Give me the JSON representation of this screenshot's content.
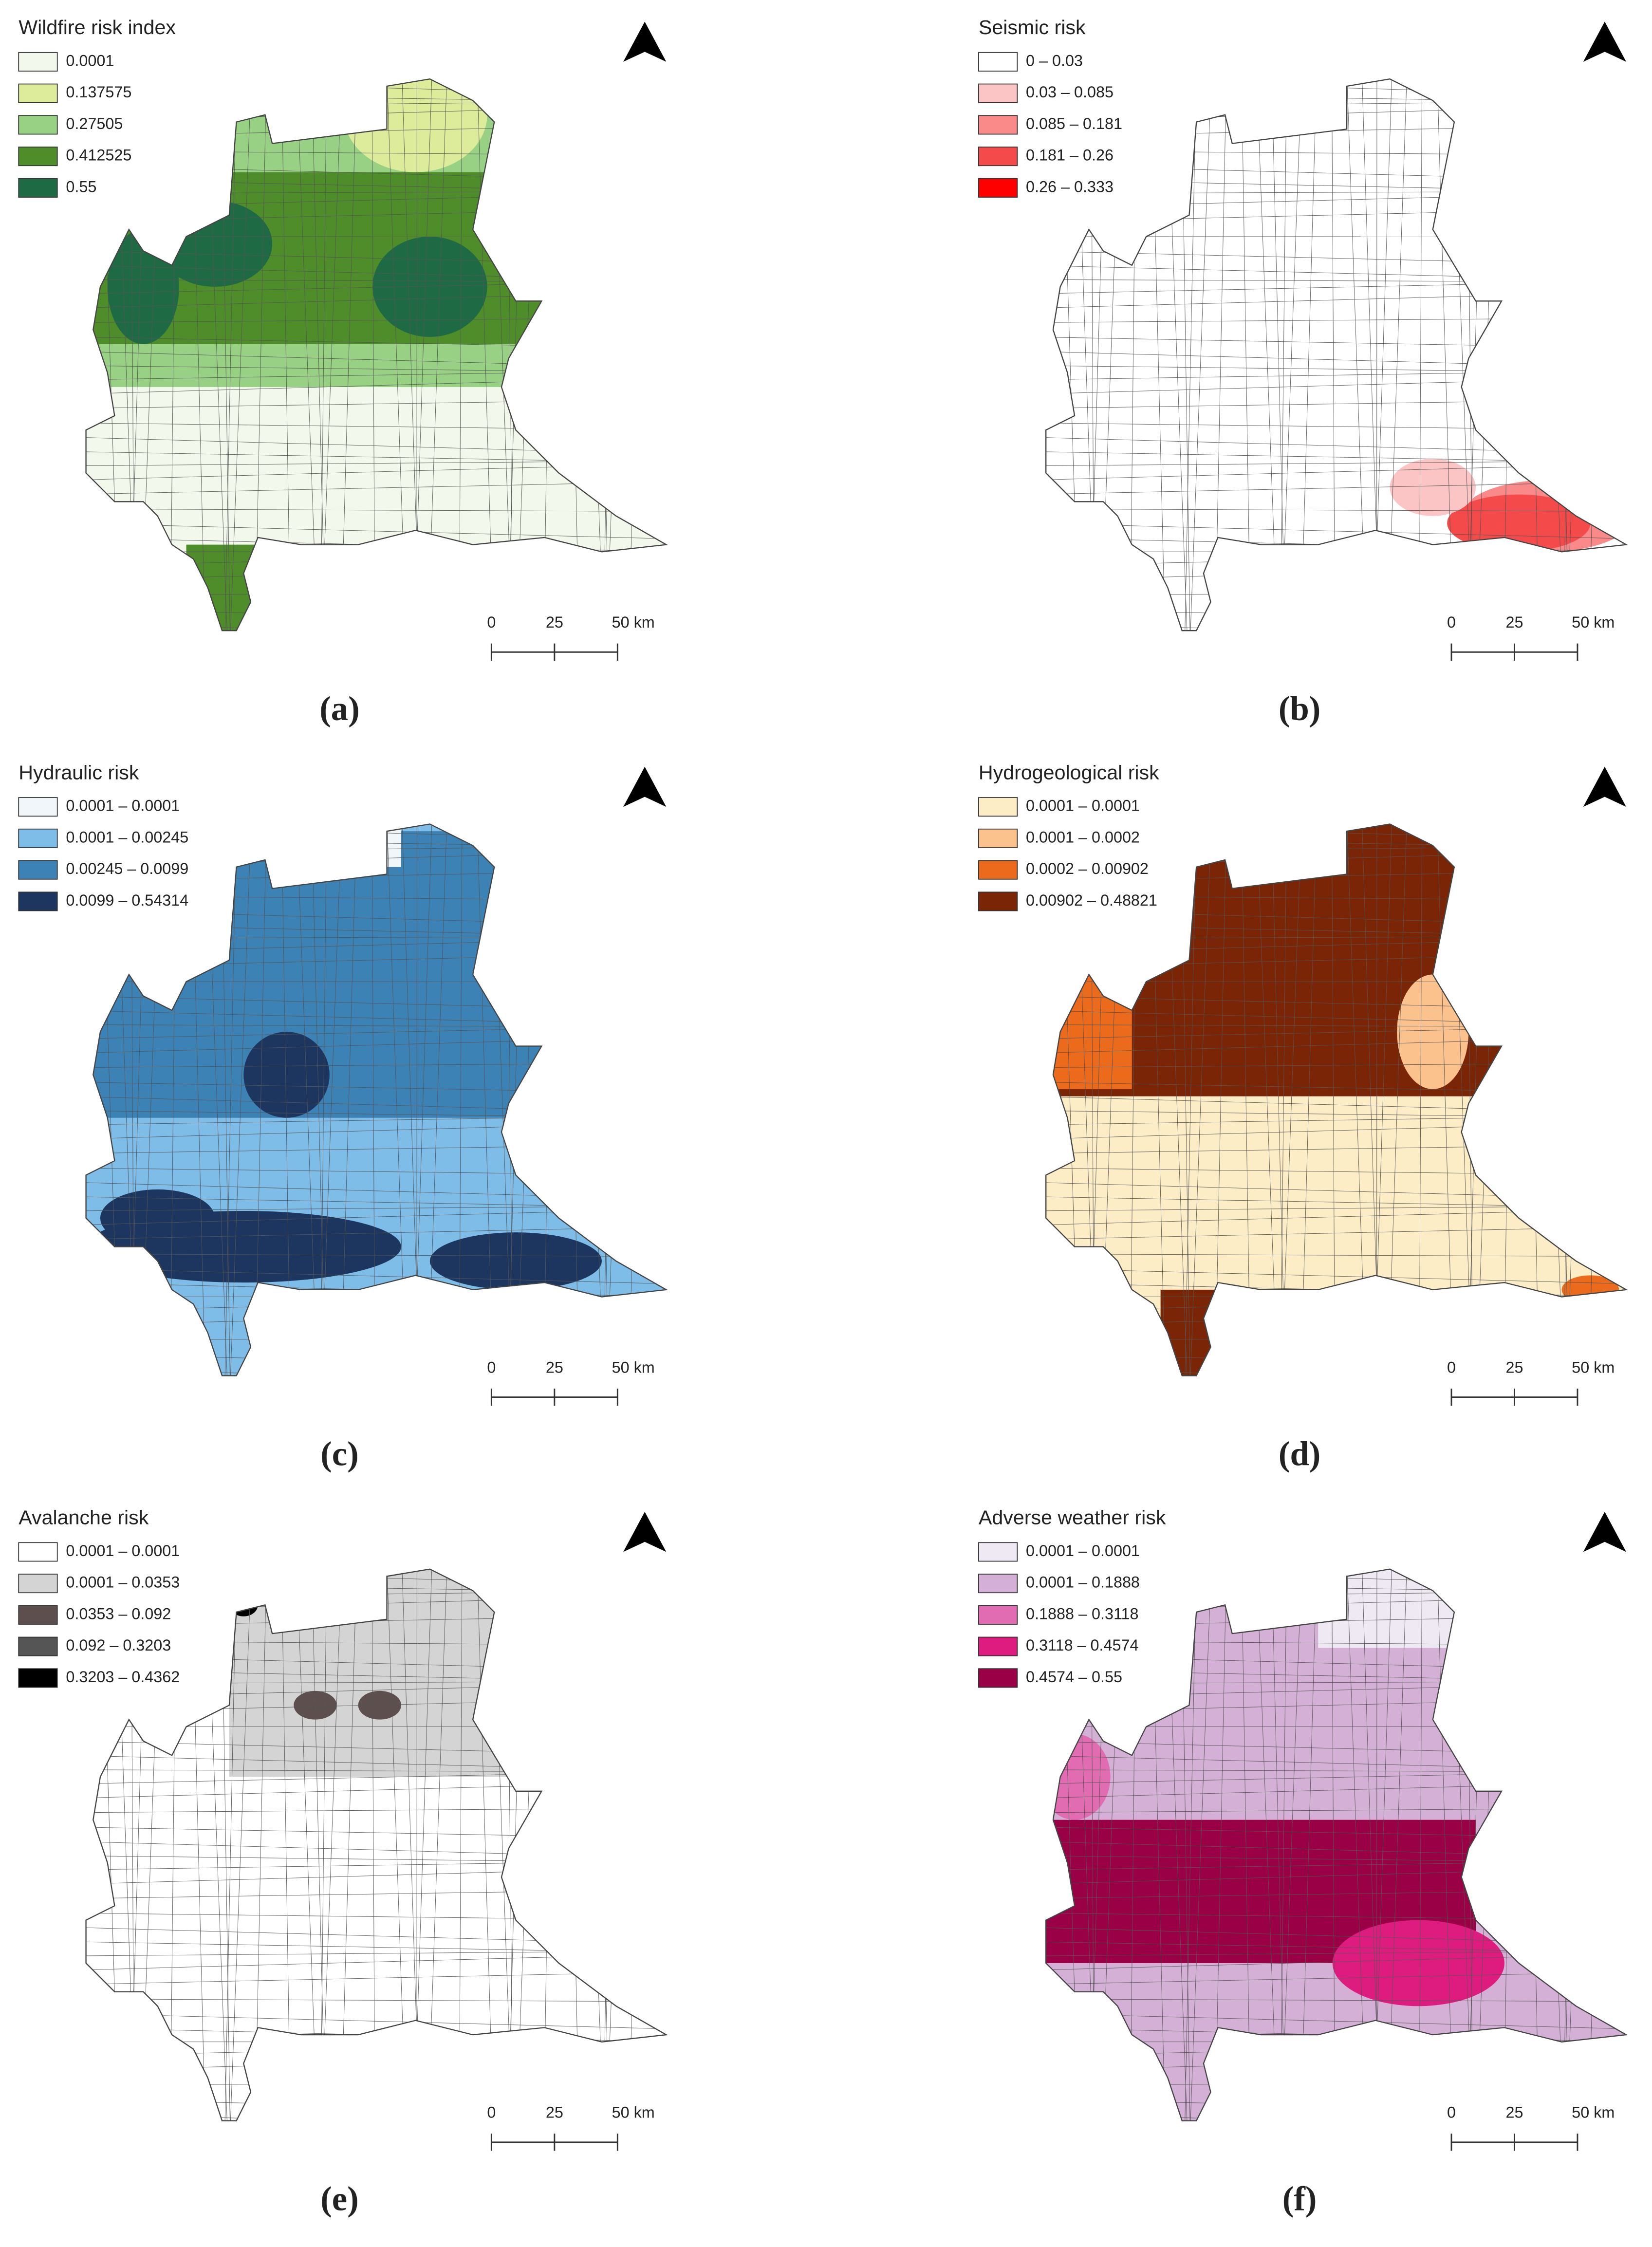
{
  "panels": [
    {
      "title": "Wildfire risk index",
      "legend": [
        {
          "label": "0.0001",
          "color": "#f3f8ec"
        },
        {
          "label": "0.137575",
          "color": "#dcec9a"
        },
        {
          "label": "0.27505",
          "color": "#98d184"
        },
        {
          "label": "0.412525",
          "color": "#4e8d2a"
        },
        {
          "label": "0.55",
          "color": "#1e6a45"
        }
      ],
      "scale_bar": [
        "0",
        "25",
        "50 km"
      ],
      "caption": "(a)"
    },
    {
      "title": "Seismic risk",
      "legend": [
        {
          "label": "0 – 0.03",
          "color": "#ffffff"
        },
        {
          "label": "0.03 – 0.085",
          "color": "#fcc5c5"
        },
        {
          "label": "0.085 – 0.181",
          "color": "#fa8a8a"
        },
        {
          "label": "0.181 – 0.26",
          "color": "#f44a4a"
        },
        {
          "label": "0.26 – 0.333",
          "color": "#ff0000"
        }
      ],
      "scale_bar": [
        "0",
        "25",
        "50 km"
      ],
      "caption": "(b)"
    },
    {
      "title": "Hydraulic risk",
      "legend": [
        {
          "label": "0.0001 – 0.0001",
          "color": "#f1f6fb"
        },
        {
          "label": "0.0001 – 0.00245",
          "color": "#7fbde9"
        },
        {
          "label": "0.00245 – 0.0099",
          "color": "#3d82b5"
        },
        {
          "label": "0.0099 – 0.54314",
          "color": "#1d3660"
        }
      ],
      "scale_bar": [
        "0",
        "25",
        "50 km"
      ],
      "caption": "(c)"
    },
    {
      "title": "Hydrogeological risk",
      "legend": [
        {
          "label": "0.0001 – 0.0001",
          "color": "#fdedc7"
        },
        {
          "label": "0.0001 – 0.0002",
          "color": "#fcc28e"
        },
        {
          "label": "0.0002 – 0.00902",
          "color": "#ec6a1c"
        },
        {
          "label": "0.00902 – 0.48821",
          "color": "#7a2506"
        }
      ],
      "scale_bar": [
        "0",
        "25",
        "50 km"
      ],
      "caption": "(d)"
    },
    {
      "title": "Avalanche risk",
      "legend": [
        {
          "label": "0.0001 – 0.0001",
          "color": "#ffffff"
        },
        {
          "label": "0.0001 – 0.0353",
          "color": "#d4d4d4"
        },
        {
          "label": "0.0353 – 0.092",
          "color": "#5e4f4f"
        },
        {
          "label": "0.092 – 0.3203",
          "color": "#555555"
        },
        {
          "label": "0.3203 – 0.4362",
          "color": "#000000"
        }
      ],
      "scale_bar": [
        "0",
        "25",
        "50 km"
      ],
      "caption": "(e)"
    },
    {
      "title": "Adverse weather risk",
      "legend": [
        {
          "label": "0.0001 – 0.0001",
          "color": "#efe9f3"
        },
        {
          "label": "0.0001 – 0.1888",
          "color": "#d4b0d7"
        },
        {
          "label": "0.1888 – 0.3118",
          "color": "#e26cb2"
        },
        {
          "label": "0.3118 – 0.4574",
          "color": "#de1c80"
        },
        {
          "label": "0.4574 – 0.55",
          "color": "#9a0045"
        }
      ],
      "scale_bar": [
        "0",
        "25",
        "50 km"
      ],
      "caption": "(f)"
    }
  ]
}
